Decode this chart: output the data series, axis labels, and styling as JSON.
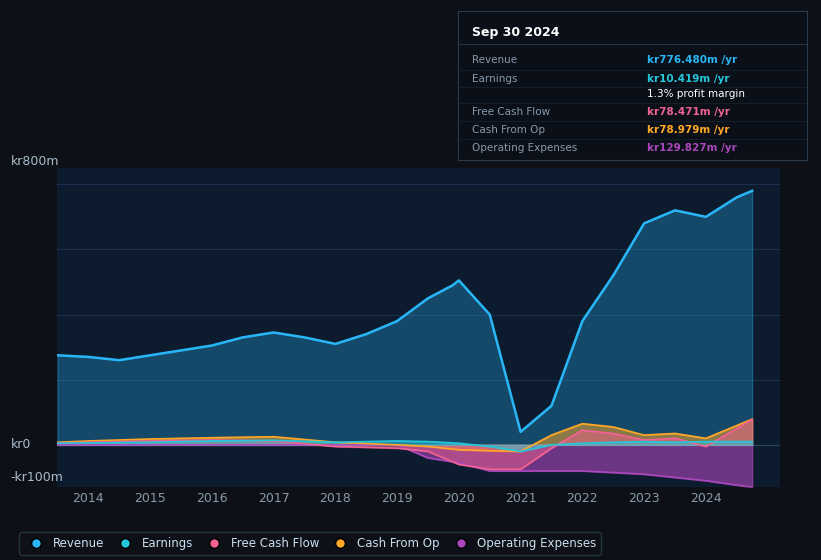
{
  "bg_color": "#0d1117",
  "plot_bg_color": "#0d1b2e",
  "grid_color": "#1e3050",
  "title": "Sep 30 2024",
  "tooltip": {
    "Revenue": "kr776.480m /yr",
    "Earnings": "kr10.419m /yr",
    "profit_margin": "1.3%",
    "Free Cash Flow": "kr78.471m /yr",
    "Cash From Op": "kr78.979m /yr",
    "Operating Expenses": "kr129.827m /yr"
  },
  "ylabel_top": "kr800m",
  "ylabel_zero": "kr0",
  "ylabel_neg": "-kr100m",
  "colors": {
    "revenue": "#29b6f6",
    "earnings": "#26c6da",
    "free_cash_flow": "#f06292",
    "cash_from_op": "#ffa726",
    "operating_expenses": "#ab47bc"
  },
  "ylim": [
    -130,
    850
  ],
  "xlim": [
    2013.5,
    2025.2
  ]
}
